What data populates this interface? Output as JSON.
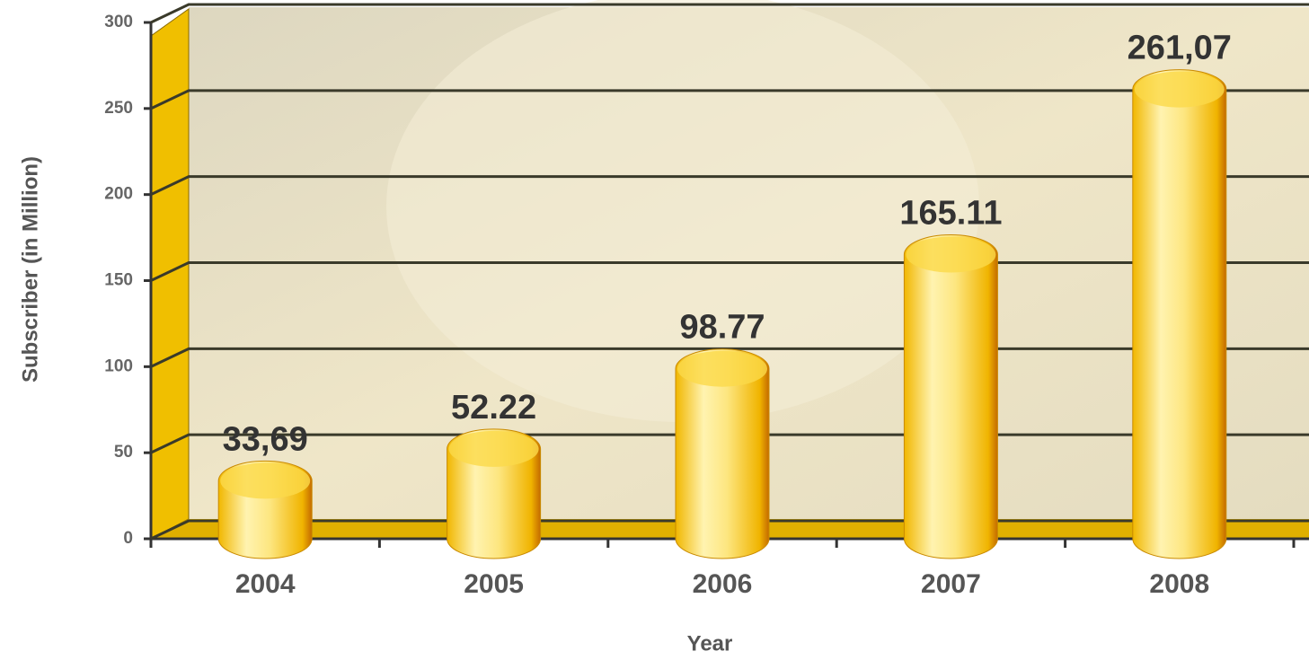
{
  "chart_data": {
    "type": "bar",
    "x_label": "Year",
    "y_label": "Subscriber (in Million)",
    "categories": [
      "2004",
      "2005",
      "2006",
      "2007",
      "2008"
    ],
    "values": [
      33.69,
      52.22,
      98.77,
      165.11,
      261.07
    ],
    "value_labels": [
      "33,69",
      "52.22",
      "98.77",
      "165.11",
      "261,07"
    ],
    "color": "#f7d23c",
    "ylim": [
      0,
      300
    ],
    "yticks": [
      0,
      50,
      100,
      150,
      200,
      250,
      300
    ],
    "grid": true
  }
}
